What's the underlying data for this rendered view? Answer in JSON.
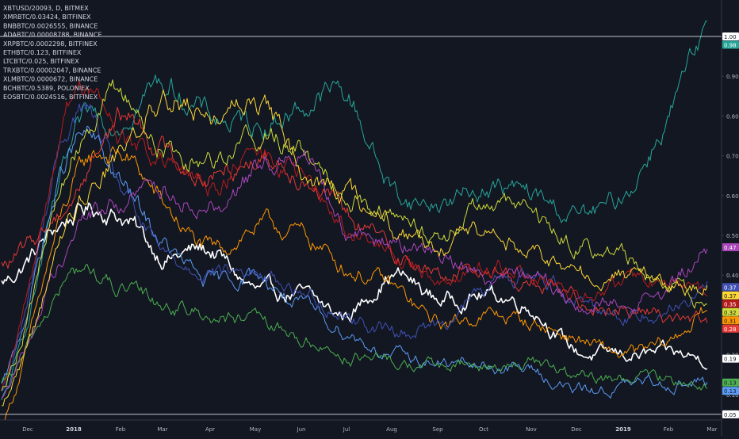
{
  "chart_data": {
    "type": "line",
    "ylim": [
      0.0,
      1.07
    ],
    "y_ticks": [
      0.05,
      0.1,
      0.2,
      0.3,
      0.4,
      0.5,
      0.6,
      0.7,
      0.8,
      0.9,
      1.0
    ],
    "y_tick_labels": [
      "0.05",
      "0.10",
      "0.20",
      "0.30",
      "0.40",
      "0.50",
      "0.60",
      "0.70",
      "0.80",
      "0.90",
      "1.00"
    ],
    "x_ticks": [
      "Dec",
      "2018",
      "Feb",
      "Mar",
      "Apr",
      "May",
      "Jun",
      "Jul",
      "Aug",
      "Sep",
      "Oct",
      "Nov",
      "Dec",
      "2019",
      "Feb",
      "Mar"
    ],
    "bold_ticks": [
      "2018",
      "2019"
    ],
    "horizontal_lines": [
      1.0,
      0.05
    ],
    "x": [
      "Dec",
      "2018",
      "Feb",
      "Mar",
      "Apr",
      "May",
      "Jun",
      "Jul",
      "Aug",
      "Sep",
      "Oct",
      "Nov",
      "Dec",
      "2019",
      "Feb",
      "Mar"
    ],
    "series": [
      {
        "name": "XBTUSD/20093, D, BITMEX",
        "color": "#ffffff",
        "width": 1.6,
        "values": [
          0.38,
          0.55,
          0.55,
          0.45,
          0.46,
          0.36,
          0.35,
          0.3,
          0.4,
          0.34,
          0.35,
          0.32,
          0.21,
          0.2,
          0.2,
          0.19
        ]
      },
      {
        "name": "XMRBTC/0.03424, BITFINEX",
        "color": "#ff9800",
        "width": 1,
        "values": [
          0.03,
          0.62,
          0.7,
          0.58,
          0.46,
          0.52,
          0.5,
          0.42,
          0.37,
          0.28,
          0.3,
          0.28,
          0.24,
          0.2,
          0.23,
          0.31
        ]
      },
      {
        "name": "BNBBTC/0.0026555, BINANCE",
        "color": "#26a69a",
        "width": 1,
        "values": [
          0.08,
          0.72,
          0.8,
          0.88,
          0.8,
          0.78,
          0.82,
          0.85,
          0.62,
          0.58,
          0.62,
          0.6,
          0.55,
          0.6,
          0.8,
          0.98
        ]
      },
      {
        "name": "ADABTC/0.00008788, BINANCE",
        "color": "#5b9cf6",
        "width": 1,
        "values": [
          0.12,
          0.72,
          0.63,
          0.48,
          0.38,
          0.4,
          0.32,
          0.26,
          0.2,
          0.18,
          0.17,
          0.16,
          0.11,
          0.12,
          0.13,
          0.13
        ]
      },
      {
        "name": "XRPBTC/0.0002298, BITFINEX",
        "color": "#3f51b5",
        "width": 1,
        "values": [
          0.1,
          0.8,
          0.62,
          0.45,
          0.42,
          0.4,
          0.36,
          0.3,
          0.26,
          0.28,
          0.36,
          0.4,
          0.35,
          0.3,
          0.32,
          0.37
        ]
      },
      {
        "name": "ETHBTC/0.123, BITFINEX",
        "color": "#e53935",
        "width": 1,
        "values": [
          0.42,
          0.6,
          0.8,
          0.72,
          0.65,
          0.7,
          0.66,
          0.55,
          0.47,
          0.4,
          0.42,
          0.38,
          0.34,
          0.32,
          0.3,
          0.28
        ]
      },
      {
        "name": "LTCBTC/0.025, BITFINEX",
        "color": "#4caf50",
        "width": 1,
        "values": [
          0.12,
          0.4,
          0.36,
          0.33,
          0.3,
          0.28,
          0.24,
          0.2,
          0.18,
          0.17,
          0.17,
          0.18,
          0.14,
          0.14,
          0.14,
          0.13
        ]
      },
      {
        "name": "TRXBTC/0.00002047, BINANCE",
        "color": "#b71c1c",
        "width": 1,
        "values": [
          0.1,
          0.85,
          0.75,
          0.68,
          0.62,
          0.7,
          0.64,
          0.52,
          0.45,
          0.4,
          0.42,
          0.4,
          0.34,
          0.38,
          0.38,
          0.35
        ]
      },
      {
        "name": "XLMBTC/0.0000672, BINANCE",
        "color": "#cddc39",
        "width": 1,
        "values": [
          0.12,
          0.7,
          0.85,
          0.72,
          0.7,
          0.75,
          0.72,
          0.62,
          0.55,
          0.5,
          0.58,
          0.55,
          0.48,
          0.45,
          0.38,
          0.32
        ]
      },
      {
        "name": "BCHBTC/0.5389, POLONIEX",
        "color": "#ab47bc",
        "width": 1,
        "values": [
          0.1,
          0.5,
          0.58,
          0.62,
          0.58,
          0.66,
          0.72,
          0.52,
          0.48,
          0.46,
          0.4,
          0.42,
          0.32,
          0.34,
          0.36,
          0.47
        ]
      },
      {
        "name": "EOSBTC/0.0024516, BITFINEX",
        "color": "#fdd835",
        "width": 1,
        "values": [
          0.08,
          0.55,
          0.7,
          0.85,
          0.8,
          0.84,
          0.68,
          0.6,
          0.52,
          0.48,
          0.5,
          0.46,
          0.4,
          0.4,
          0.38,
          0.37
        ]
      }
    ],
    "badges": [
      {
        "label": "1.00",
        "value": 1.0,
        "bg": "#ffffff",
        "fg": "#131722"
      },
      {
        "label": "0.98",
        "value": 0.98,
        "bg": "#26a69a",
        "fg": "#ffffff"
      },
      {
        "label": "0.47",
        "value": 0.47,
        "bg": "#ab47bc",
        "fg": "#ffffff"
      },
      {
        "label": "0.37",
        "value": 0.37,
        "bg": "#3f51b5",
        "fg": "#ffffff"
      },
      {
        "label": "0.37",
        "value": 0.37,
        "bg": "#fdd835",
        "fg": "#131722"
      },
      {
        "label": "0.35",
        "value": 0.35,
        "bg": "#b71c1c",
        "fg": "#ffffff"
      },
      {
        "label": "0.32",
        "value": 0.32,
        "bg": "#cddc39",
        "fg": "#131722"
      },
      {
        "label": "0.31",
        "value": 0.31,
        "bg": "#ff9800",
        "fg": "#131722"
      },
      {
        "label": "0.28",
        "value": 0.28,
        "bg": "#e53935",
        "fg": "#ffffff"
      },
      {
        "label": "0.19",
        "value": 0.19,
        "bg": "#ffffff",
        "fg": "#131722"
      },
      {
        "label": "0.13",
        "value": 0.13,
        "bg": "#4caf50",
        "fg": "#131722"
      },
      {
        "label": "0.13",
        "value": 0.13,
        "bg": "#5b9cf6",
        "fg": "#131722"
      },
      {
        "label": "0.05",
        "value": 0.05,
        "bg": "#ffffff",
        "fg": "#131722"
      }
    ]
  }
}
